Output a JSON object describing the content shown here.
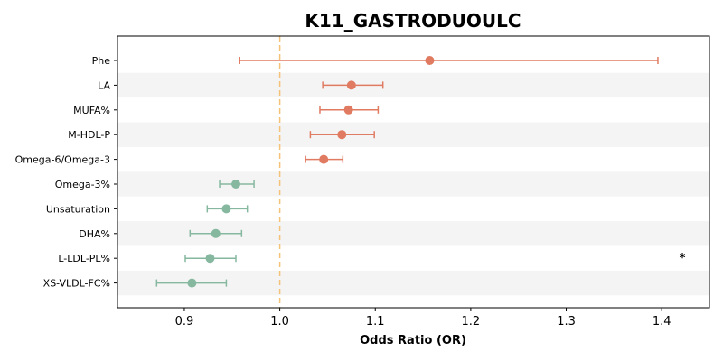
{
  "chart_data": {
    "type": "forest",
    "title": "K11_GASTRODUOULC",
    "xlabel": "Odds Ratio (OR)",
    "xlim": [
      0.83,
      1.45
    ],
    "xticks": [
      0.9,
      1.0,
      1.1,
      1.2,
      1.3,
      1.4
    ],
    "xtick_labels": [
      "0.9",
      "1.0",
      "1.1",
      "1.2",
      "1.3",
      "1.4"
    ],
    "reference_line": 1.0,
    "colors": {
      "positive": "#e07b62",
      "negative": "#86b8a0",
      "reference": "#f5c27a",
      "band": "#f4f4f4"
    },
    "rows": [
      {
        "label": "Phe",
        "or": 1.157,
        "lower": 0.958,
        "upper": 1.396,
        "direction": "positive"
      },
      {
        "label": "LA",
        "or": 1.075,
        "lower": 1.045,
        "upper": 1.108,
        "direction": "positive"
      },
      {
        "label": "MUFA%",
        "or": 1.072,
        "lower": 1.042,
        "upper": 1.103,
        "direction": "positive"
      },
      {
        "label": "M-HDL-P",
        "or": 1.065,
        "lower": 1.032,
        "upper": 1.099,
        "direction": "positive"
      },
      {
        "label": "Omega-6/Omega-3",
        "or": 1.046,
        "lower": 1.027,
        "upper": 1.066,
        "direction": "positive"
      },
      {
        "label": "Omega-3%",
        "or": 0.954,
        "lower": 0.937,
        "upper": 0.973,
        "direction": "negative"
      },
      {
        "label": "Unsaturation",
        "or": 0.944,
        "lower": 0.924,
        "upper": 0.966,
        "direction": "negative"
      },
      {
        "label": "DHA%",
        "or": 0.933,
        "lower": 0.906,
        "upper": 0.96,
        "direction": "negative"
      },
      {
        "label": "L-LDL-PL%",
        "or": 0.927,
        "lower": 0.901,
        "upper": 0.954,
        "direction": "negative",
        "annotation": "*"
      },
      {
        "label": "XS-VLDL-FC%",
        "or": 0.908,
        "lower": 0.871,
        "upper": 0.944,
        "direction": "negative"
      }
    ]
  }
}
